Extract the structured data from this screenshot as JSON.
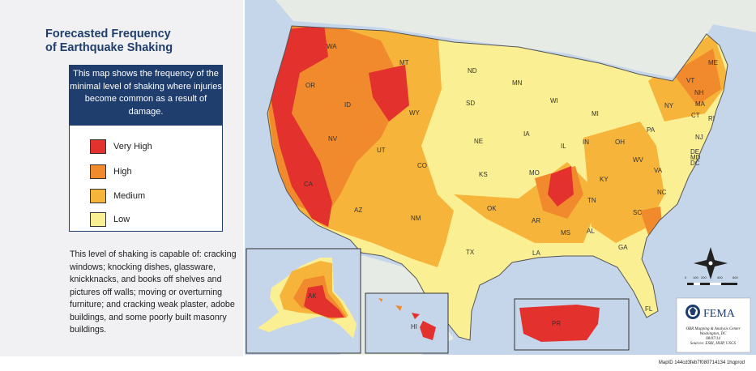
{
  "title": {
    "line1": "Forecasted Frequency",
    "line2": "of Earthquake Shaking"
  },
  "description": "This map shows the frequency of the minimal level of shaking where injuries become common as a result of damage.",
  "legend": [
    {
      "label": "Very High",
      "color": "#e3312e"
    },
    {
      "label": "High",
      "color": "#f08a2c"
    },
    {
      "label": "Medium",
      "color": "#f7b43a"
    },
    {
      "label": "Low",
      "color": "#fbef94"
    }
  ],
  "body_text": "This level of shaking is capable of: cracking windows; knocking dishes, glassware, knickknacks, and books off shelves and pictures off walls; moving or overturning furniture; and cracking weak plaster, adobe buildings, and some poorly built masonry buildings.",
  "colors": {
    "water": "#c6d6ea",
    "very_high": "#e3312e",
    "high": "#f08a2c",
    "medium": "#f7b43a",
    "low": "#fbef94",
    "navy": "#1f3e6e"
  },
  "state_labels": [
    "WA",
    "OR",
    "CA",
    "ID",
    "NV",
    "MT",
    "WY",
    "UT",
    "AZ",
    "CO",
    "NM",
    "ND",
    "SD",
    "NE",
    "KS",
    "OK",
    "TX",
    "MN",
    "IA",
    "MO",
    "AR",
    "LA",
    "WI",
    "IL",
    "MI",
    "IN",
    "KY",
    "TN",
    "MS",
    "AL",
    "OH",
    "GA",
    "FL",
    "SC",
    "NC",
    "VA",
    "WV",
    "PA",
    "NY",
    "VT",
    "NH",
    "ME",
    "MA",
    "RI",
    "CT",
    "NJ",
    "DE",
    "MD",
    "DC"
  ],
  "inset_labels": {
    "alaska": "AK",
    "hawaii": "HI",
    "puerto_rico": "PR"
  },
  "scale": {
    "ticks": [
      "0",
      "100",
      "200",
      "400",
      "600"
    ]
  },
  "agency": {
    "name": "FEMA",
    "credits": [
      "OBR Mapping & Analysis Center",
      "Washington, DC",
      "08/07/14",
      "Sources: ESRI, HSIP, USGS"
    ]
  },
  "map_id": "MapID 144cd3feb7f080714134 1hqprod"
}
